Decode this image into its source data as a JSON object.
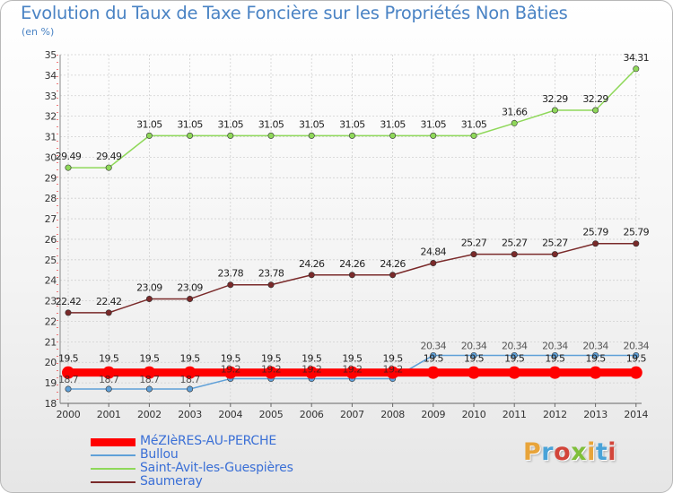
{
  "title": "Evolution du Taux de Taxe Foncière sur les Propriétés Non Bâties",
  "unit": "(en %)",
  "logo": {
    "text": "Proxiti",
    "colors": [
      "#e8a43a",
      "#4aa3d8",
      "#d2453a",
      "#7fbf3a",
      "#e8a43a",
      "#4aa3d8",
      "#d2453a"
    ]
  },
  "chart_data": {
    "type": "line",
    "x": [
      "2000",
      "2001",
      "2002",
      "2003",
      "2004",
      "2005",
      "2006",
      "2007",
      "2008",
      "2009",
      "2010",
      "2011",
      "2012",
      "2013",
      "2014"
    ],
    "ylim": [
      18,
      35
    ],
    "yticks": [
      "18",
      "19",
      "20",
      "21",
      "22",
      "23",
      "24",
      "25",
      "26",
      "27",
      "28",
      "29",
      "30",
      "31",
      "32",
      "33",
      "34",
      "35"
    ],
    "legend_position": "bottom-left",
    "series": [
      {
        "name": "MéZIèRES-AU-PERCHE",
        "color": "#ff0000",
        "values": [
          19.5,
          19.5,
          19.5,
          19.5,
          19.5,
          19.5,
          19.5,
          19.5,
          19.5,
          19.5,
          19.5,
          19.5,
          19.5,
          19.5,
          19.5
        ],
        "labels": [
          "19.5",
          "19.5",
          "19.5",
          "19.5",
          "19.5",
          "19.5",
          "19.5",
          "19.5",
          "19.5",
          "19.5",
          "19.5",
          "19.5",
          "19.5",
          "19.5",
          "19.5"
        ]
      },
      {
        "name": "Bullou",
        "color": "#5fa0d8",
        "values": [
          18.7,
          18.7,
          18.7,
          18.7,
          19.2,
          19.2,
          19.2,
          19.2,
          19.2,
          20.34,
          20.34,
          20.34,
          20.34,
          20.34,
          20.34
        ],
        "labels": [
          "18.7",
          "18.7",
          "18.7",
          "18.7",
          "19.2",
          "19.2",
          "19.2",
          "19.2",
          "19.2",
          "20.34",
          "20.34",
          "20.34",
          "20.34",
          "20.34",
          "20.34"
        ]
      },
      {
        "name": "Saint-Avit-les-Guespières",
        "color": "#8fd85a",
        "values": [
          29.49,
          29.49,
          31.05,
          31.05,
          31.05,
          31.05,
          31.05,
          31.05,
          31.05,
          31.05,
          31.05,
          31.66,
          32.29,
          32.29,
          34.31
        ],
        "labels": [
          "29.49",
          "29.49",
          "31.05",
          "31.05",
          "31.05",
          "31.05",
          "31.05",
          "31.05",
          "31.05",
          "31.05",
          "31.05",
          "31.66",
          "32.29",
          "32.29",
          "34.31"
        ]
      },
      {
        "name": "Saumeray",
        "color": "#7a2a2a",
        "values": [
          22.42,
          22.42,
          23.09,
          23.09,
          23.78,
          23.78,
          24.26,
          24.26,
          24.26,
          24.84,
          25.27,
          25.27,
          25.27,
          25.79,
          25.79
        ],
        "labels": [
          "22.42",
          "22.42",
          "23.09",
          "23.09",
          "23.78",
          "23.78",
          "24.26",
          "24.26",
          "24.26",
          "24.84",
          "25.27",
          "25.27",
          "25.27",
          "25.79",
          "25.79"
        ]
      }
    ]
  }
}
